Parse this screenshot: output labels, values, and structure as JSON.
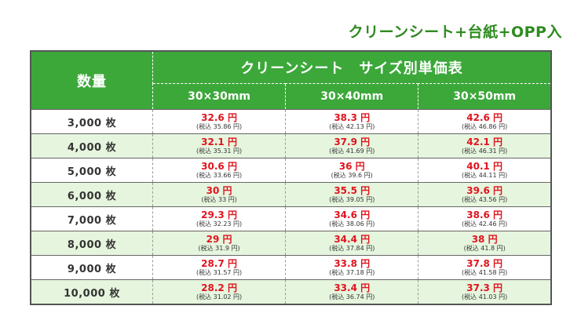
{
  "caption": "クリーンシート+台紙+OPP入",
  "table": {
    "qty_header": "数量",
    "title": "クリーンシート　サイズ別単価表",
    "sizes": [
      "30×30mm",
      "30×40mm",
      "30×50mm"
    ],
    "rows": [
      {
        "qty": "3,000 枚",
        "prices": [
          {
            "price": "32.6 円",
            "tax": "(税込 35.86 円)"
          },
          {
            "price": "38.3 円",
            "tax": "(税込 42.13 円)"
          },
          {
            "price": "42.6 円",
            "tax": "(税込 46.86 円)"
          }
        ]
      },
      {
        "qty": "4,000 枚",
        "prices": [
          {
            "price": "32.1 円",
            "tax": "(税込 35.31 円)"
          },
          {
            "price": "37.9 円",
            "tax": "(税込 41.69 円)"
          },
          {
            "price": "42.1 円",
            "tax": "(税込 46.31 円)"
          }
        ]
      },
      {
        "qty": "5,000 枚",
        "prices": [
          {
            "price": "30.6 円",
            "tax": "(税込 33.66 円)"
          },
          {
            "price": "36 円",
            "tax": "(税込 39.6 円)"
          },
          {
            "price": "40.1 円",
            "tax": "(税込 44.11 円)"
          }
        ]
      },
      {
        "qty": "6,000 枚",
        "prices": [
          {
            "price": "30 円",
            "tax": "(税込 33 円)"
          },
          {
            "price": "35.5 円",
            "tax": "(税込 39.05 円)"
          },
          {
            "price": "39.6 円",
            "tax": "(税込 43.56 円)"
          }
        ]
      },
      {
        "qty": "7,000 枚",
        "prices": [
          {
            "price": "29.3 円",
            "tax": "(税込 32.23 円)"
          },
          {
            "price": "34.6 円",
            "tax": "(税込 38.06 円)"
          },
          {
            "price": "38.6 円",
            "tax": "(税込 42.46 円)"
          }
        ]
      },
      {
        "qty": "8,000 枚",
        "prices": [
          {
            "price": "29 円",
            "tax": "(税込 31.9 円)"
          },
          {
            "price": "34.4 円",
            "tax": "(税込 37.84 円)"
          },
          {
            "price": "38 円",
            "tax": "(税込 41.8 円)"
          }
        ]
      },
      {
        "qty": "9,000 枚",
        "prices": [
          {
            "price": "28.7 円",
            "tax": "(税込 31.57 円)"
          },
          {
            "price": "33.8 円",
            "tax": "(税込 37.18 円)"
          },
          {
            "price": "37.8 円",
            "tax": "(税込 41.58 円)"
          }
        ]
      },
      {
        "qty": "10,000 枚",
        "prices": [
          {
            "price": "28.2 円",
            "tax": "(税込 31.02 円)"
          },
          {
            "price": "33.4 円",
            "tax": "(税込 36.74 円)"
          },
          {
            "price": "37.3 円",
            "tax": "(税込 41.03 円)"
          }
        ]
      }
    ]
  },
  "colors": {
    "header_green": "#3ca83a",
    "caption_green": "#2e8b1f",
    "price_red": "#e0141e",
    "alt_row": "#e6f5de"
  }
}
